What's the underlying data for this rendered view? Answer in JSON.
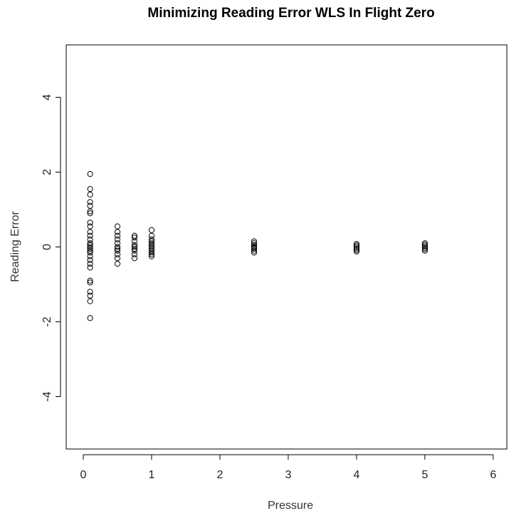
{
  "chart_data": {
    "type": "scatter",
    "title": "Minimizing Reading Error WLS In Flight Zero",
    "xlabel": "Pressure",
    "ylabel": "Reading Error",
    "xlim": [
      -0.25,
      6.2
    ],
    "ylim": [
      -5.4,
      5.4
    ],
    "x_ticks": [
      0,
      1,
      2,
      3,
      4,
      5,
      6
    ],
    "y_ticks": [
      -4,
      -2,
      0,
      2,
      4
    ],
    "grid": false,
    "marker": "open-circle",
    "series": [
      {
        "points": [
          [
            0.1,
            1.95
          ],
          [
            0.1,
            1.55
          ],
          [
            0.1,
            1.4
          ],
          [
            0.1,
            1.2
          ],
          [
            0.1,
            1.1
          ],
          [
            0.1,
            0.95
          ],
          [
            0.1,
            0.9
          ],
          [
            0.1,
            0.65
          ],
          [
            0.1,
            0.55
          ],
          [
            0.1,
            0.4
          ],
          [
            0.1,
            0.3
          ],
          [
            0.1,
            0.2
          ],
          [
            0.1,
            0.1
          ],
          [
            0.1,
            0.05
          ],
          [
            0.1,
            0.0
          ],
          [
            0.1,
            -0.05
          ],
          [
            0.1,
            -0.1
          ],
          [
            0.1,
            -0.15
          ],
          [
            0.1,
            -0.25
          ],
          [
            0.1,
            -0.35
          ],
          [
            0.1,
            -0.45
          ],
          [
            0.1,
            -0.55
          ],
          [
            0.1,
            -0.9
          ],
          [
            0.1,
            -0.95
          ],
          [
            0.1,
            -1.2
          ],
          [
            0.1,
            -1.3
          ],
          [
            0.1,
            -1.45
          ],
          [
            0.1,
            -1.9
          ],
          [
            0.5,
            0.55
          ],
          [
            0.5,
            0.4
          ],
          [
            0.5,
            0.3
          ],
          [
            0.5,
            0.2
          ],
          [
            0.5,
            0.1
          ],
          [
            0.5,
            0.0
          ],
          [
            0.5,
            -0.05
          ],
          [
            0.5,
            -0.1
          ],
          [
            0.5,
            -0.2
          ],
          [
            0.5,
            -0.3
          ],
          [
            0.5,
            -0.45
          ],
          [
            0.75,
            0.3
          ],
          [
            0.75,
            0.25
          ],
          [
            0.75,
            0.15
          ],
          [
            0.75,
            0.05
          ],
          [
            0.75,
            0.0
          ],
          [
            0.75,
            -0.05
          ],
          [
            0.75,
            -0.1
          ],
          [
            0.75,
            -0.2
          ],
          [
            0.75,
            -0.3
          ],
          [
            1.0,
            0.45
          ],
          [
            1.0,
            0.3
          ],
          [
            1.0,
            0.2
          ],
          [
            1.0,
            0.15
          ],
          [
            1.0,
            0.1
          ],
          [
            1.0,
            0.05
          ],
          [
            1.0,
            0.0
          ],
          [
            1.0,
            -0.05
          ],
          [
            1.0,
            -0.1
          ],
          [
            1.0,
            -0.15
          ],
          [
            1.0,
            -0.2
          ],
          [
            1.0,
            -0.25
          ],
          [
            2.5,
            0.15
          ],
          [
            2.5,
            0.1
          ],
          [
            2.5,
            0.05
          ],
          [
            2.5,
            0.0
          ],
          [
            2.5,
            -0.02
          ],
          [
            2.5,
            -0.05
          ],
          [
            2.5,
            -0.1
          ],
          [
            2.5,
            -0.15
          ],
          [
            4.0,
            0.08
          ],
          [
            4.0,
            0.04
          ],
          [
            4.0,
            0.0
          ],
          [
            4.0,
            -0.04
          ],
          [
            4.0,
            -0.08
          ],
          [
            4.0,
            -0.12
          ],
          [
            5.0,
            0.1
          ],
          [
            5.0,
            0.06
          ],
          [
            5.0,
            0.02
          ],
          [
            5.0,
            -0.02
          ],
          [
            5.0,
            -0.06
          ],
          [
            5.0,
            -0.1
          ]
        ]
      }
    ]
  }
}
